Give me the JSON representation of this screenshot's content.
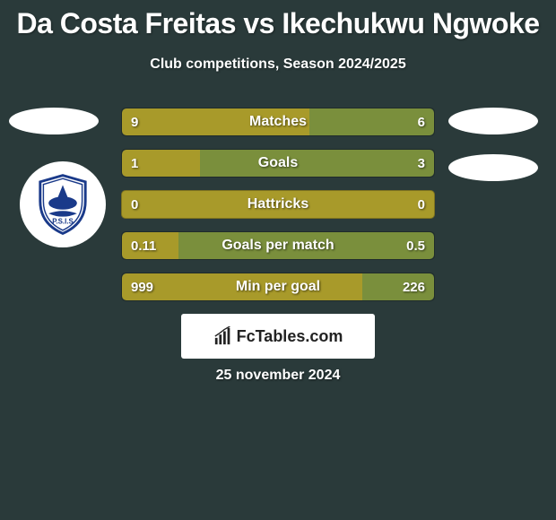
{
  "title": "Da Costa Freitas vs Ikechukwu Ngwoke",
  "subtitle": "Club competitions, Season 2024/2025",
  "date": "25 november 2024",
  "branding": "FcTables.com",
  "colors": {
    "background": "#2a3a3a",
    "bar_left": "#a89a2a",
    "bar_right": "#7a8f3c",
    "bar_empty": "#5a6a6a",
    "text": "#ffffff",
    "branding_bg": "#ffffff",
    "branding_text": "#222222"
  },
  "stats": [
    {
      "label": "Matches",
      "left_display": "9",
      "right_display": "6",
      "left_pct": 60,
      "right_pct": 40
    },
    {
      "label": "Goals",
      "left_display": "1",
      "right_display": "3",
      "left_pct": 25,
      "right_pct": 75
    },
    {
      "label": "Hattricks",
      "left_display": "0",
      "right_display": "0",
      "left_pct": 0,
      "right_pct": 0
    },
    {
      "label": "Goals per match",
      "left_display": "0.11",
      "right_display": "0.5",
      "left_pct": 18,
      "right_pct": 82
    },
    {
      "label": "Min per goal",
      "left_display": "999",
      "right_display": "226",
      "left_pct": 77,
      "right_pct": 23
    }
  ]
}
